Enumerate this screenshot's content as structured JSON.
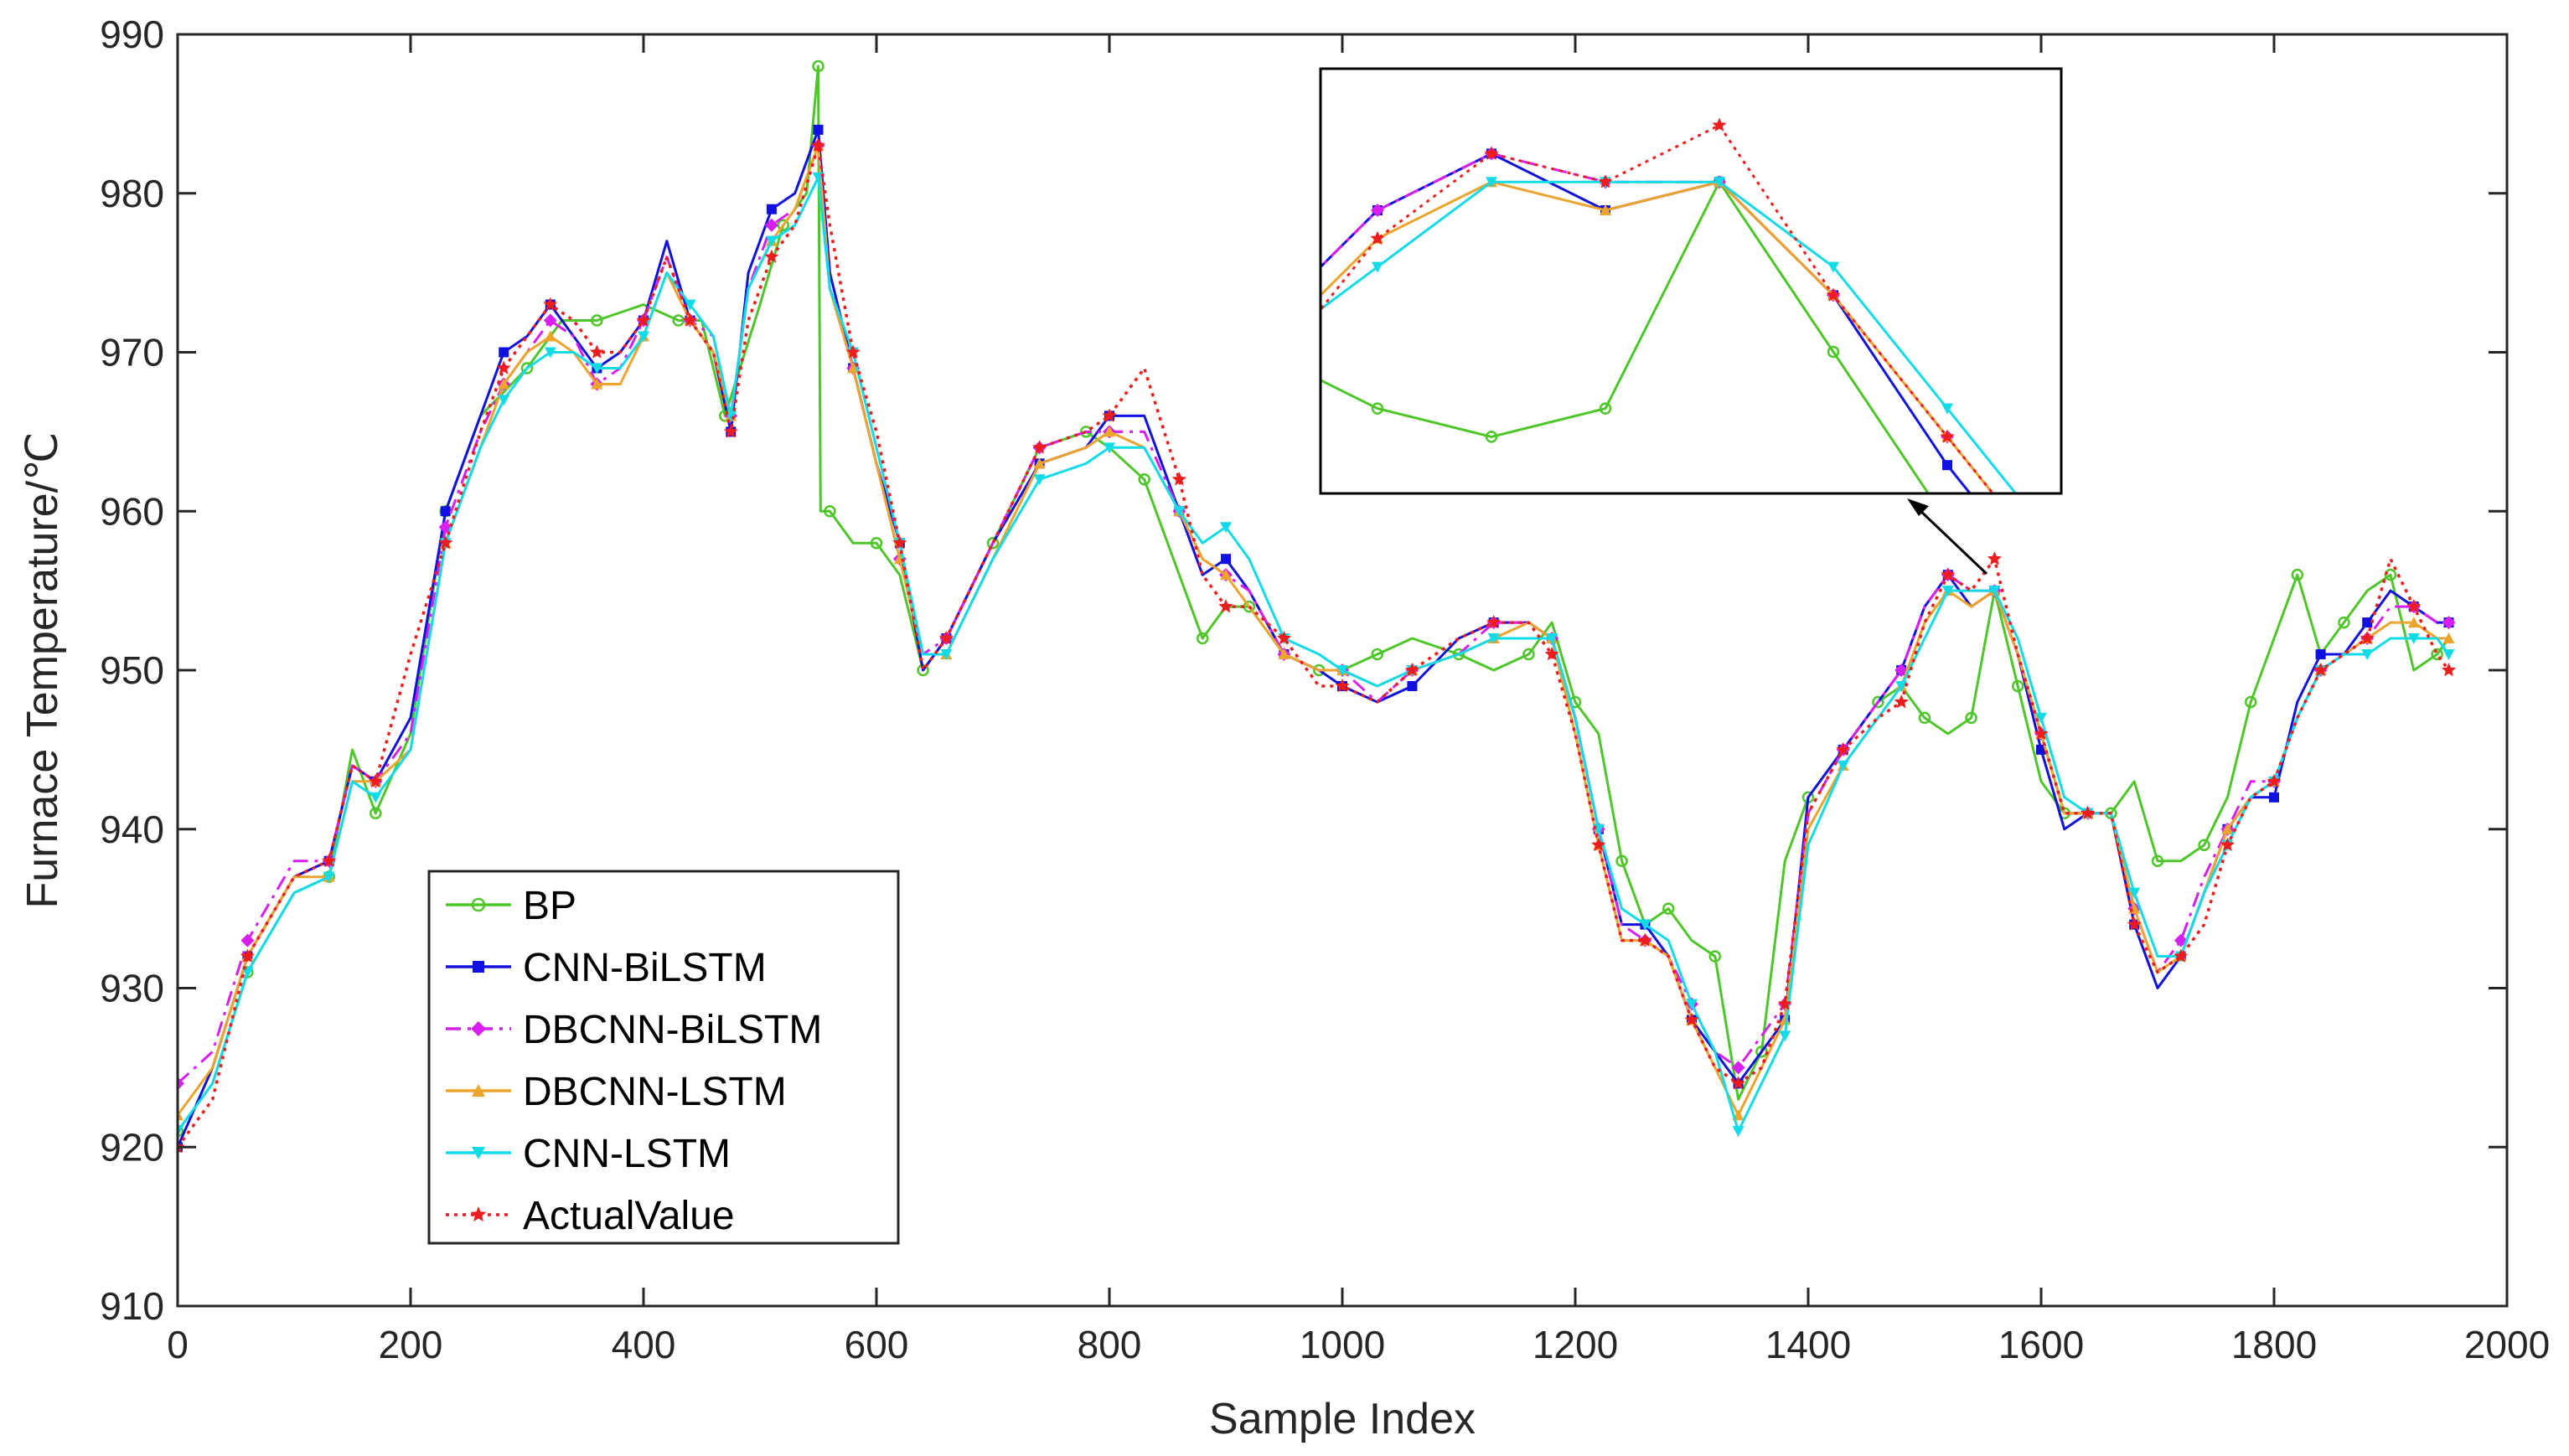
{
  "chart_data": {
    "type": "line",
    "title": "",
    "xlabel": "Sample Index",
    "ylabel": "Furnace Temperature/℃",
    "xlim": [
      0,
      2000
    ],
    "ylim": [
      910,
      990
    ],
    "xticks": [
      0,
      200,
      400,
      600,
      800,
      1000,
      1200,
      1400,
      1600,
      1800,
      2000
    ],
    "yticks": [
      910,
      920,
      930,
      940,
      950,
      960,
      970,
      980,
      990
    ],
    "grid": false,
    "legend_position": "bottom-left",
    "inset": {
      "description_free": true,
      "x_range": [
        1490,
        1620
      ],
      "linked_to": [
        1570,
        957
      ]
    },
    "series": [
      {
        "name": "BP",
        "color": "#4ec62a",
        "marker": "circle",
        "dash": "solid",
        "x": [
          0,
          30,
          60,
          100,
          130,
          150,
          170,
          200,
          230,
          260,
          300,
          330,
          360,
          400,
          430,
          450,
          470,
          500,
          520,
          540,
          550,
          552,
          560,
          580,
          600,
          620,
          640,
          660,
          700,
          740,
          780,
          800,
          830,
          860,
          880,
          900,
          920,
          950,
          980,
          1000,
          1030,
          1060,
          1100,
          1130,
          1160,
          1180,
          1200,
          1220,
          1240,
          1260,
          1280,
          1300,
          1320,
          1340,
          1360,
          1380,
          1400,
          1430,
          1460,
          1480,
          1500,
          1520,
          1540,
          1560,
          1580,
          1600,
          1620,
          1640,
          1660,
          1680,
          1700,
          1720,
          1740,
          1760,
          1780,
          1800,
          1820,
          1840,
          1860,
          1880,
          1900,
          1920,
          1940,
          1950
        ],
        "y": [
          921,
          924,
          931,
          936,
          937,
          945,
          941,
          946,
          960,
          966,
          969,
          972,
          972,
          973,
          972,
          972,
          966,
          973,
          978,
          980,
          988,
          960,
          960,
          958,
          958,
          956,
          950,
          952,
          958,
          964,
          965,
          964,
          962,
          956,
          952,
          954,
          954,
          951,
          950,
          950,
          951,
          952,
          951,
          950,
          951,
          953,
          948,
          946,
          938,
          934,
          935,
          933,
          932,
          923,
          926,
          938,
          942,
          945,
          948,
          949,
          947,
          946,
          947,
          955,
          949,
          943,
          941,
          941,
          941,
          943,
          938,
          938,
          939,
          942,
          948,
          952,
          956,
          951,
          953,
          955,
          956,
          950,
          951,
          952
        ]
      },
      {
        "name": "CNN-BiLSTM",
        "color": "#1010e0",
        "marker": "square",
        "dash": "solid",
        "x": [
          0,
          30,
          60,
          100,
          130,
          150,
          170,
          200,
          230,
          260,
          280,
          300,
          320,
          340,
          360,
          380,
          400,
          420,
          440,
          460,
          475,
          490,
          510,
          530,
          550,
          560,
          580,
          600,
          620,
          640,
          660,
          700,
          740,
          780,
          800,
          830,
          860,
          880,
          900,
          920,
          950,
          980,
          1000,
          1030,
          1060,
          1100,
          1130,
          1160,
          1180,
          1200,
          1220,
          1240,
          1260,
          1280,
          1300,
          1320,
          1340,
          1360,
          1380,
          1400,
          1430,
          1460,
          1480,
          1500,
          1520,
          1540,
          1560,
          1580,
          1600,
          1620,
          1640,
          1660,
          1680,
          1700,
          1720,
          1740,
          1760,
          1780,
          1800,
          1820,
          1840,
          1860,
          1880,
          1900,
          1920,
          1940,
          1950
        ],
        "y": [
          920,
          925,
          932,
          937,
          938,
          944,
          943,
          947,
          960,
          966,
          970,
          971,
          973,
          971,
          969,
          970,
          972,
          977,
          972,
          970,
          965,
          975,
          979,
          980,
          984,
          975,
          969,
          963,
          958,
          950,
          952,
          958,
          963,
          964,
          966,
          966,
          960,
          956,
          957,
          955,
          951,
          950,
          949,
          948,
          949,
          952,
          953,
          953,
          952,
          947,
          940,
          934,
          934,
          932,
          928,
          926,
          924,
          926,
          928,
          942,
          945,
          948,
          950,
          954,
          956,
          954,
          955,
          951,
          945,
          940,
          941,
          941,
          934,
          930,
          932,
          936,
          940,
          942,
          942,
          948,
          951,
          951,
          953,
          955,
          954,
          953,
          953
        ]
      },
      {
        "name": "DBCNN-BiLSTM",
        "color": "#d61ff0",
        "marker": "diamond",
        "dash": "dashdot",
        "x": [
          0,
          30,
          60,
          100,
          130,
          150,
          170,
          200,
          230,
          260,
          280,
          300,
          320,
          340,
          360,
          380,
          400,
          420,
          440,
          460,
          475,
          490,
          510,
          530,
          550,
          560,
          580,
          600,
          620,
          640,
          660,
          700,
          740,
          780,
          800,
          830,
          860,
          880,
          900,
          920,
          950,
          980,
          1000,
          1030,
          1060,
          1100,
          1130,
          1160,
          1180,
          1200,
          1220,
          1240,
          1260,
          1280,
          1300,
          1320,
          1340,
          1360,
          1380,
          1400,
          1430,
          1460,
          1480,
          1500,
          1520,
          1540,
          1560,
          1580,
          1600,
          1620,
          1640,
          1660,
          1680,
          1700,
          1720,
          1740,
          1760,
          1780,
          1800,
          1820,
          1840,
          1860,
          1880,
          1900,
          1920,
          1940,
          1950
        ],
        "y": [
          924,
          926,
          933,
          938,
          938,
          944,
          943,
          946,
          959,
          965,
          968,
          970,
          972,
          971,
          968,
          969,
          972,
          976,
          972,
          971,
          966,
          974,
          978,
          979,
          983,
          974,
          969,
          963,
          957,
          951,
          952,
          958,
          964,
          965,
          965,
          965,
          960,
          957,
          956,
          955,
          951,
          950,
          950,
          948,
          950,
          951,
          953,
          953,
          952,
          947,
          940,
          934,
          933,
          932,
          929,
          926,
          925,
          927,
          929,
          941,
          945,
          948,
          950,
          954,
          956,
          955,
          955,
          951,
          946,
          941,
          941,
          941,
          935,
          931,
          933,
          937,
          940,
          943,
          943,
          947,
          950,
          951,
          952,
          954,
          954,
          953,
          953
        ]
      },
      {
        "name": "DBCNN-LSTM",
        "color": "#eda42c",
        "marker": "triangle",
        "dash": "solid",
        "x": [
          0,
          30,
          60,
          100,
          130,
          150,
          170,
          200,
          230,
          260,
          280,
          300,
          320,
          340,
          360,
          380,
          400,
          420,
          440,
          460,
          475,
          490,
          510,
          530,
          550,
          560,
          580,
          600,
          620,
          640,
          660,
          700,
          740,
          780,
          800,
          830,
          860,
          880,
          900,
          920,
          950,
          980,
          1000,
          1030,
          1060,
          1100,
          1130,
          1160,
          1180,
          1200,
          1220,
          1240,
          1260,
          1280,
          1300,
          1320,
          1340,
          1360,
          1380,
          1400,
          1430,
          1460,
          1480,
          1500,
          1520,
          1540,
          1560,
          1580,
          1600,
          1620,
          1640,
          1660,
          1680,
          1700,
          1720,
          1740,
          1760,
          1780,
          1800,
          1820,
          1840,
          1860,
          1880,
          1900,
          1920,
          1940,
          1950
        ],
        "y": [
          922,
          925,
          932,
          937,
          937,
          943,
          943,
          945,
          958,
          964,
          968,
          970,
          971,
          970,
          968,
          968,
          971,
          975,
          972,
          970,
          966,
          974,
          977,
          979,
          983,
          974,
          969,
          963,
          957,
          951,
          951,
          957,
          963,
          964,
          965,
          964,
          960,
          957,
          956,
          954,
          951,
          950,
          950,
          949,
          950,
          951,
          952,
          953,
          952,
          946,
          939,
          933,
          933,
          932,
          928,
          925,
          922,
          925,
          928,
          940,
          944,
          947,
          949,
          953,
          955,
          954,
          955,
          951,
          946,
          941,
          941,
          941,
          935,
          931,
          932,
          936,
          940,
          942,
          943,
          947,
          950,
          951,
          952,
          953,
          953,
          952,
          952
        ]
      },
      {
        "name": "CNN-LSTM",
        "color": "#12dbe8",
        "marker": "triangle-down",
        "dash": "solid",
        "x": [
          0,
          30,
          60,
          100,
          130,
          150,
          170,
          200,
          230,
          260,
          280,
          300,
          320,
          340,
          360,
          380,
          400,
          420,
          440,
          460,
          475,
          490,
          510,
          530,
          550,
          560,
          580,
          600,
          620,
          640,
          660,
          700,
          740,
          780,
          800,
          830,
          860,
          880,
          900,
          920,
          950,
          980,
          1000,
          1030,
          1060,
          1100,
          1130,
          1160,
          1180,
          1200,
          1220,
          1240,
          1260,
          1280,
          1300,
          1320,
          1340,
          1360,
          1380,
          1400,
          1430,
          1460,
          1480,
          1500,
          1520,
          1540,
          1560,
          1580,
          1600,
          1620,
          1640,
          1660,
          1680,
          1700,
          1720,
          1740,
          1760,
          1780,
          1800,
          1820,
          1840,
          1860,
          1880,
          1900,
          1920,
          1940,
          1950
        ],
        "y": [
          921,
          924,
          931,
          936,
          937,
          943,
          942,
          945,
          958,
          964,
          967,
          969,
          970,
          970,
          969,
          969,
          971,
          975,
          973,
          971,
          966,
          974,
          977,
          978,
          981,
          974,
          970,
          964,
          958,
          951,
          951,
          957,
          962,
          963,
          964,
          964,
          960,
          958,
          959,
          957,
          952,
          951,
          950,
          949,
          950,
          951,
          952,
          952,
          952,
          947,
          940,
          935,
          934,
          933,
          929,
          926,
          921,
          924,
          927,
          939,
          944,
          947,
          949,
          952,
          955,
          955,
          955,
          952,
          947,
          942,
          941,
          941,
          936,
          932,
          932,
          936,
          939,
          942,
          943,
          947,
          950,
          951,
          951,
          952,
          952,
          952,
          951
        ]
      },
      {
        "name": "ActualValue",
        "color": "#ee1c1c",
        "marker": "star",
        "dash": "dotted",
        "x": [
          0,
          30,
          60,
          100,
          130,
          150,
          170,
          200,
          230,
          260,
          280,
          300,
          320,
          340,
          360,
          380,
          400,
          420,
          440,
          460,
          475,
          490,
          510,
          530,
          550,
          560,
          580,
          600,
          620,
          640,
          660,
          700,
          740,
          780,
          800,
          830,
          860,
          880,
          900,
          920,
          950,
          980,
          1000,
          1030,
          1060,
          1100,
          1130,
          1160,
          1180,
          1200,
          1220,
          1240,
          1260,
          1280,
          1300,
          1320,
          1340,
          1360,
          1380,
          1400,
          1430,
          1460,
          1480,
          1500,
          1520,
          1540,
          1560,
          1580,
          1600,
          1620,
          1640,
          1660,
          1680,
          1700,
          1720,
          1740,
          1760,
          1780,
          1800,
          1820,
          1840,
          1860,
          1880,
          1900,
          1920,
          1940,
          1950
        ],
        "y": [
          920,
          923,
          932,
          937,
          938,
          944,
          943,
          951,
          958,
          965,
          969,
          971,
          973,
          972,
          970,
          970,
          972,
          976,
          972,
          970,
          965,
          972,
          976,
          978,
          983,
          978,
          970,
          965,
          958,
          950,
          952,
          958,
          964,
          965,
          966,
          969,
          962,
          956,
          954,
          954,
          952,
          949,
          949,
          948,
          950,
          952,
          953,
          953,
          951,
          946,
          939,
          933,
          933,
          932,
          928,
          925,
          924,
          925,
          929,
          941,
          945,
          947,
          948,
          953,
          956,
          955,
          957,
          951,
          946,
          941,
          941,
          941,
          934,
          931,
          932,
          934,
          939,
          942,
          943,
          947,
          950,
          951,
          952,
          957,
          954,
          951,
          950
        ]
      }
    ]
  }
}
